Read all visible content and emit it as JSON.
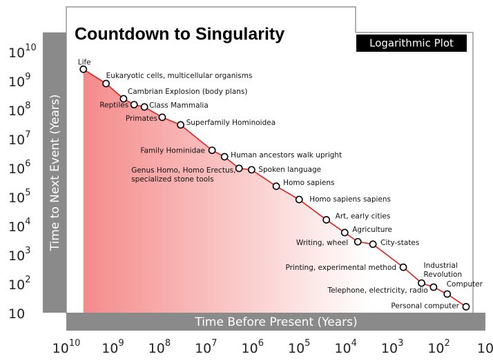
{
  "chart_data": {
    "type": "line",
    "title": "Countdown to Singularity",
    "subtitle": "Logarithmic Plot",
    "ylabel": "Time to Next Event (Years)",
    "xlabel": "Time Before Present (Years)",
    "xscale": "log",
    "yscale": "log",
    "xlim": [
      10000000000,
      10
    ],
    "ylim": [
      10,
      10000000000
    ],
    "xticks": [
      {
        "value": 10000000000,
        "label": "10^10"
      },
      {
        "value": 1000000000,
        "label": "10^9"
      },
      {
        "value": 100000000,
        "label": "10^8"
      },
      {
        "value": 10000000,
        "label": "10^7"
      },
      {
        "value": 1000000,
        "label": "10^6"
      },
      {
        "value": 100000,
        "label": "10^5"
      },
      {
        "value": 10000,
        "label": "10^4"
      },
      {
        "value": 1000,
        "label": "10^3"
      },
      {
        "value": 100,
        "label": "10^2"
      },
      10
    ],
    "yticks": [
      {
        "value": 10000000000,
        "label": "10^10"
      },
      {
        "value": 1000000000,
        "label": "10^9"
      },
      {
        "value": 100000000,
        "label": "10^8"
      },
      {
        "value": 10000000,
        "label": "10^7"
      },
      {
        "value": 1000000,
        "label": "10^6"
      },
      {
        "value": 100000,
        "label": "10^5"
      },
      {
        "value": 10000,
        "label": "10^4"
      },
      {
        "value": 1000,
        "label": "10^3"
      },
      {
        "value": 100,
        "label": "10^2"
      },
      10
    ],
    "x": [
      4300000000,
      1400000000,
      590000000,
      350000000,
      210000000,
      87000000,
      35000000,
      7400000,
      4000000,
      1950000,
      1050000,
      310000,
      100000,
      26000,
      10500,
      5500,
      2600,
      580,
      235,
      130,
      66,
      26
    ],
    "series": [
      {
        "color": "#e3201c",
        "values": [
          2500000000,
          800000000,
          240000000,
          150000000,
          125000000,
          55000000,
          30000000,
          4000000,
          2400000,
          950000,
          850000,
          230000,
          80000,
          16000,
          5800,
          2800,
          2300,
          370,
          105,
          76,
          44,
          16
        ]
      }
    ],
    "point_labels": [
      [
        "Life"
      ],
      [
        "Eukaryotic cells, multicellular organisms"
      ],
      [
        "Cambrian Explosion (body plans)"
      ],
      [
        "Reptiles"
      ],
      [
        "Class Mammalia"
      ],
      [
        "Primates"
      ],
      [
        "Superfamily Hominoidea"
      ],
      [
        "Family Hominidae"
      ],
      [
        "Human ancestors walk upright"
      ],
      [
        "Genus Homo, Homo Erectus,",
        "specialized stone tools"
      ],
      [
        "Spoken language"
      ],
      [
        "Homo sapiens"
      ],
      [
        "Homo sapiens sapiens"
      ],
      [
        "Art, early cities"
      ],
      [
        "Agriculture"
      ],
      [
        "Writing, wheel"
      ],
      [
        "City-states"
      ],
      [
        "Printing, experimental method"
      ],
      [
        "Industrial",
        "Revolution"
      ],
      [
        "Telephone, electricity, radio"
      ],
      [
        "Computer"
      ],
      [
        "Personal computer"
      ]
    ]
  }
}
